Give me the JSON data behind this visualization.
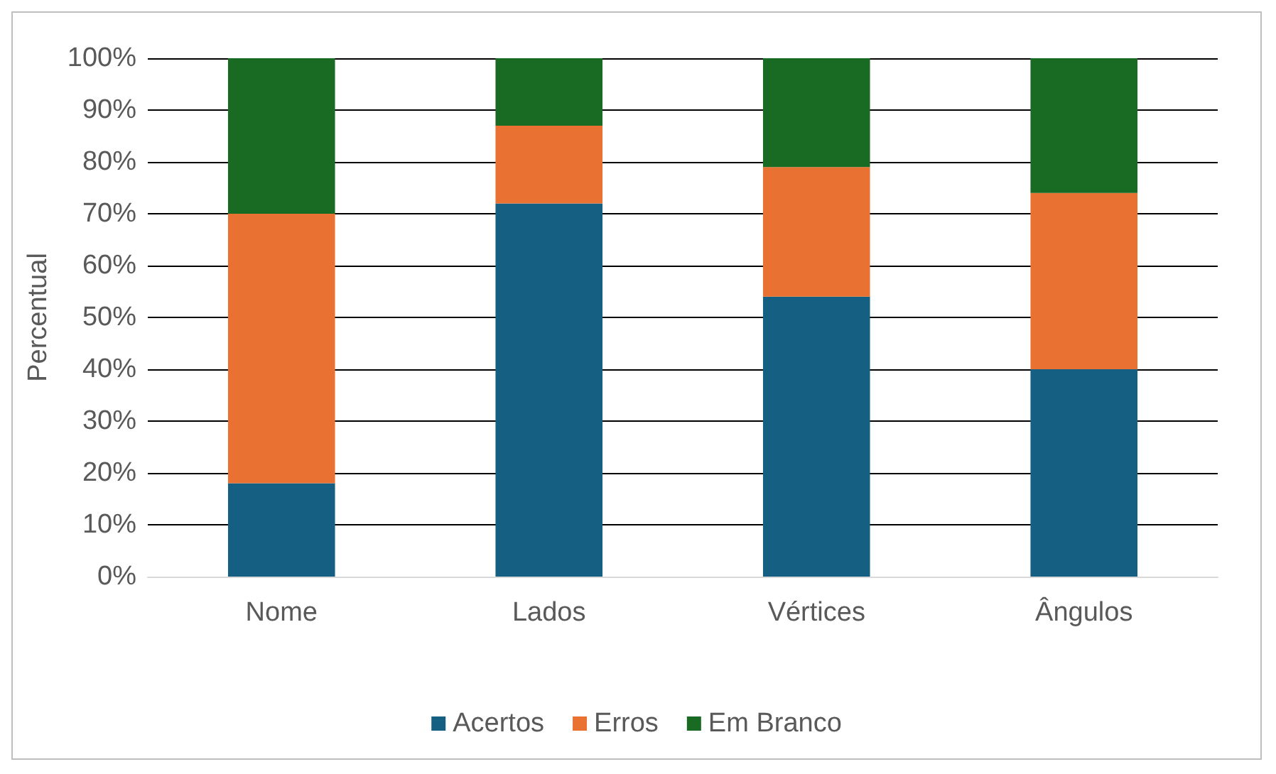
{
  "chart_data": {
    "type": "bar",
    "stacked": true,
    "ylabel": "Percentual",
    "categories": [
      "Nome",
      "Lados",
      "Vértices",
      "Ângulos"
    ],
    "series": [
      {
        "name": "Acertos",
        "color": "#156082",
        "values": [
          18,
          72,
          54,
          40
        ]
      },
      {
        "name": "Erros",
        "color": "#e97132",
        "values": [
          52,
          15,
          25,
          34
        ]
      },
      {
        "name": "Em Branco",
        "color": "#196b24",
        "values": [
          30,
          13,
          21,
          26
        ]
      }
    ],
    "ylim": [
      0,
      100
    ],
    "yticks": [
      {
        "value": 0,
        "label": "0%"
      },
      {
        "value": 10,
        "label": "10%"
      },
      {
        "value": 20,
        "label": "20%"
      },
      {
        "value": 30,
        "label": "30%"
      },
      {
        "value": 40,
        "label": "40%"
      },
      {
        "value": 50,
        "label": "50%"
      },
      {
        "value": 60,
        "label": "60%"
      },
      {
        "value": 70,
        "label": "70%"
      },
      {
        "value": 80,
        "label": "80%"
      },
      {
        "value": 90,
        "label": "90%"
      },
      {
        "value": 100,
        "label": "100%"
      }
    ],
    "grid": true,
    "legend": "bottom"
  }
}
